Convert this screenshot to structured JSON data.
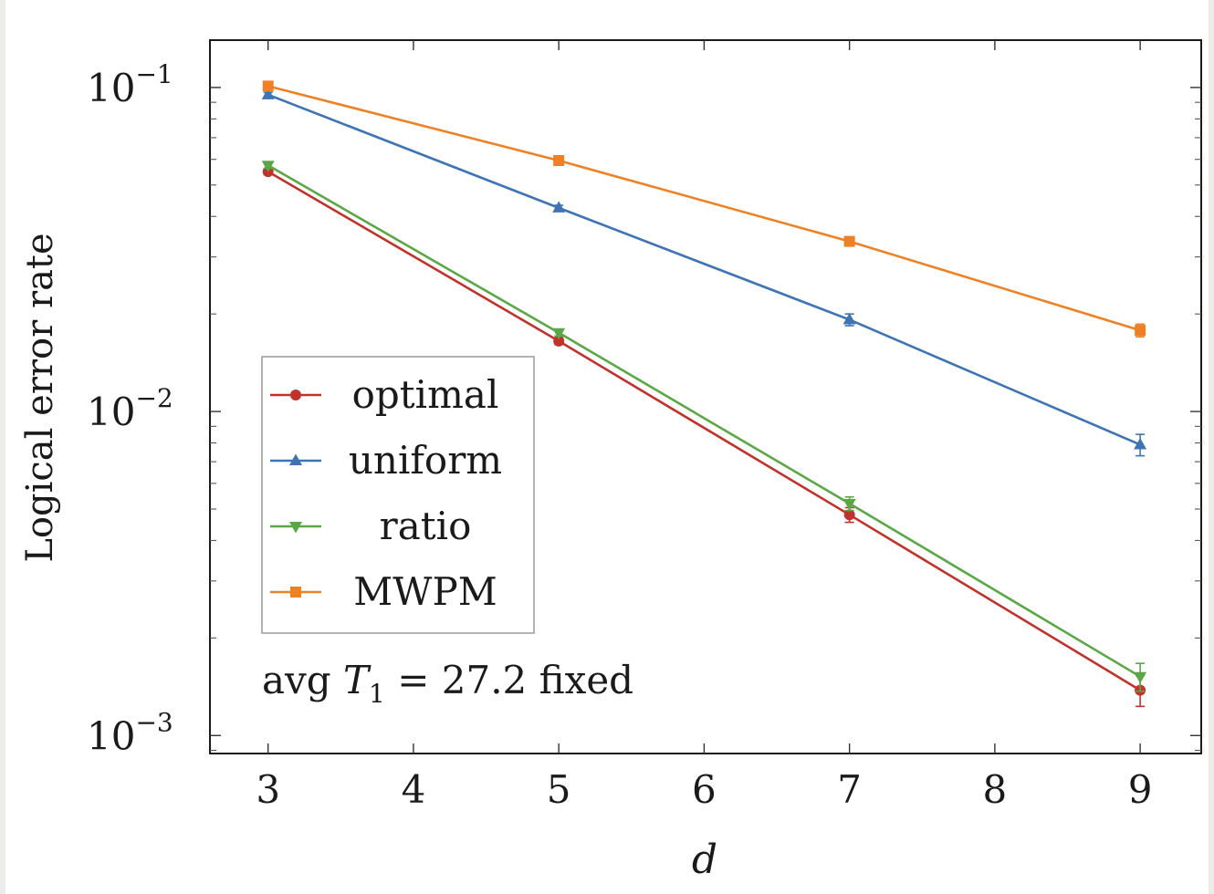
{
  "chart_data": {
    "type": "line",
    "title": "",
    "xlabel": "d",
    "ylabel": "Logical error rate",
    "x_scale": "linear",
    "y_scale": "log",
    "xlim": [
      2.6,
      9.42
    ],
    "ylim": [
      0.00088,
      0.14
    ],
    "x_ticks": [
      3,
      4,
      5,
      6,
      7,
      8,
      9
    ],
    "x_tick_labels": [
      "3",
      "4",
      "5",
      "6",
      "7",
      "8",
      "9"
    ],
    "y_ticks": [
      0.1,
      0.01,
      0.001
    ],
    "y_tick_labels": [
      {
        "base": "10",
        "exp": "−1"
      },
      {
        "base": "10",
        "exp": "−2"
      },
      {
        "base": "10",
        "exp": "−3"
      }
    ],
    "legend_position": "lower-left",
    "grid": false,
    "series": [
      {
        "name": "optimal",
        "color": "#c0332c",
        "marker": "circle",
        "x": [
          3,
          5,
          7,
          9
        ],
        "y": [
          0.055,
          0.0165,
          0.0048,
          0.00138
        ],
        "err": [
          0.0012,
          0.0004,
          0.00025,
          0.00015
        ]
      },
      {
        "name": "uniform",
        "color": "#3f74b4",
        "marker": "triangle-up",
        "x": [
          3,
          5,
          7,
          9
        ],
        "y": [
          0.095,
          0.0425,
          0.0192,
          0.0079
        ],
        "err": [
          0.0015,
          0.0008,
          0.0008,
          0.0006
        ]
      },
      {
        "name": "ratio",
        "color": "#5aa845",
        "marker": "triangle-down",
        "x": [
          3,
          5,
          7,
          9
        ],
        "y": [
          0.0575,
          0.0175,
          0.0052,
          0.00152
        ],
        "err": [
          0.0012,
          0.0004,
          0.00025,
          0.00015
        ]
      },
      {
        "name": "MWPM",
        "color": "#ef8125",
        "marker": "square",
        "x": [
          3,
          5,
          7,
          9
        ],
        "y": [
          0.101,
          0.0595,
          0.0335,
          0.0178
        ],
        "err": [
          0.0015,
          0.001,
          0.0008,
          0.0008
        ]
      }
    ],
    "annotation": {
      "prefix": "avg ",
      "var": "T",
      "sub": "1",
      "suffix": " = 27.2 fixed"
    }
  }
}
